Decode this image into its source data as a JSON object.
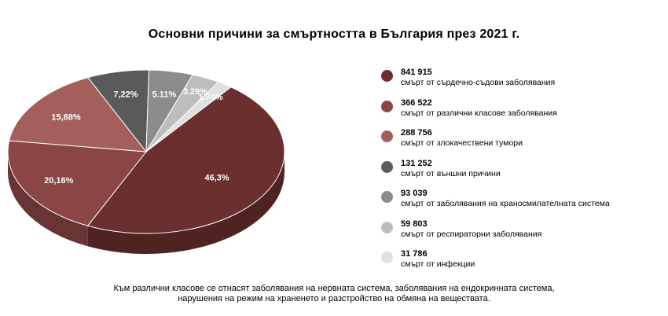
{
  "chart_data": {
    "type": "pie",
    "title": "Основни причини за смъртността в България през 2021 г.",
    "slices": [
      {
        "percent_label": "46,3%",
        "value": 841915,
        "label": "смърт от сърдечно-съдови заболявания",
        "value_label": "841 915",
        "color": "#6b2f2f"
      },
      {
        "percent_label": "20,16%",
        "value": 366522,
        "label": "смърт от различни класове заболявания",
        "value_label": "366 522",
        "color": "#8b4545"
      },
      {
        "percent_label": "15,88%",
        "value": 288756,
        "label": "смърт от злокачествени тумори",
        "value_label": "288 756",
        "color": "#a45f5c"
      },
      {
        "percent_label": "7,22%",
        "value": 131252,
        "label": "смърт от външни причини",
        "value_label": "131 252",
        "color": "#5a5a5a"
      },
      {
        "percent_label": "5.11%",
        "value": 93039,
        "label": "смърт от заболявания на храносмилателната система",
        "value_label": "93 039",
        "color": "#8c8c8c"
      },
      {
        "percent_label": "3.29%",
        "value": 59803,
        "label": "смърт от респираторни заболявания",
        "value_label": "59 803",
        "color": "#bdbdbd"
      },
      {
        "percent_label": "1.74%",
        "value": 31786,
        "label": "смърт от инфекции",
        "value_label": "31 786",
        "color": "#e0e0e0"
      }
    ],
    "legend_position": "right"
  },
  "footnote": {
    "line1": "Към различни класове се отнасят заболявания на нервната система, заболявания на ендокринната система,",
    "line2": "нарушения на режим на храненето и разстройство на обмяна на веществата."
  }
}
